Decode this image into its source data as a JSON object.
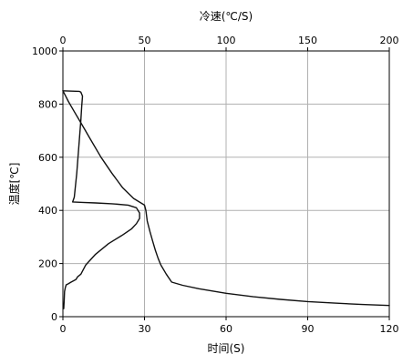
{
  "chart_data": {
    "type": "line",
    "x_axis": {
      "label": "时间(S)",
      "min": 0,
      "max": 120,
      "ticks": [
        0,
        30,
        60,
        90,
        120
      ]
    },
    "x2_axis": {
      "label": "冷速(℃/S)",
      "min": 0,
      "max": 200,
      "ticks": [
        0,
        50,
        100,
        150,
        200
      ]
    },
    "y_axis": {
      "label": "温度[℃]",
      "min": 0,
      "max": 1000,
      "ticks": [
        0,
        200,
        400,
        600,
        800,
        1000
      ]
    },
    "grid": true,
    "legend": "none",
    "series": [
      {
        "axis": "time",
        "x": [
          0,
          1,
          2,
          4,
          6,
          8,
          10,
          14,
          18,
          22,
          26,
          30,
          30.5,
          31,
          32,
          33,
          34,
          35,
          36,
          38,
          40,
          44,
          50,
          60,
          70,
          80,
          90,
          100,
          110,
          120
        ],
        "y": [
          850,
          830,
          810,
          775,
          740,
          705,
          670,
          600,
          540,
          485,
          445,
          420,
          400,
          360,
          320,
          285,
          250,
          220,
          195,
          160,
          130,
          118,
          105,
          88,
          75,
          65,
          57,
          51,
          46,
          42
        ]
      },
      {
        "axis": "cooling_rate",
        "x": [
          0,
          10,
          11,
          12,
          11.5,
          11,
          10.5,
          10,
          9.5,
          9,
          8.5,
          8,
          7.5,
          7,
          6,
          12,
          20,
          30,
          40,
          45,
          47,
          47,
          45,
          42,
          36,
          28,
          20,
          14,
          11,
          9,
          8,
          5,
          3,
          2,
          1.5,
          1,
          0.8,
          0.5
        ],
        "y": [
          850,
          848,
          845,
          830,
          790,
          740,
          700,
          660,
          620,
          580,
          540,
          510,
          480,
          450,
          432,
          430,
          428,
          425,
          420,
          410,
          390,
          370,
          350,
          330,
          305,
          275,
          235,
          195,
          160,
          150,
          140,
          130,
          123,
          120,
          110,
          95,
          60,
          30
        ]
      }
    ]
  }
}
